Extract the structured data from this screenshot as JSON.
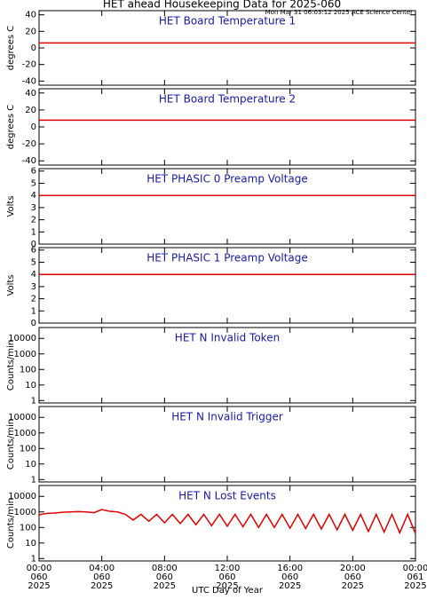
{
  "title": "HET ahead Housekeeping Data for 2025-060",
  "subtitle": "Mon Mar 31 06:03:12 2025 ACE Science Center",
  "xlabel": "UTC Day of Year",
  "chart_data": [
    {
      "type": "line",
      "title": "HET Board Temperature 1",
      "ylabel": "degrees C",
      "xlim": [
        0,
        24
      ],
      "xticks": [
        0,
        4,
        8,
        12,
        16,
        20,
        24
      ],
      "ylim": [
        -45,
        45
      ],
      "yticks": [
        40,
        20,
        0,
        -20,
        -40
      ],
      "series": [
        {
          "color": "#e00000",
          "x": [
            0,
            24
          ],
          "values": [
            6,
            6
          ]
        }
      ]
    },
    {
      "type": "line",
      "title": "HET Board Temperature 2",
      "ylabel": "degrees C",
      "xlim": [
        0,
        24
      ],
      "xticks": [
        0,
        4,
        8,
        12,
        16,
        20,
        24
      ],
      "ylim": [
        -45,
        45
      ],
      "yticks": [
        40,
        20,
        0,
        -20,
        -40
      ],
      "series": [
        {
          "color": "#e00000",
          "x": [
            0,
            24
          ],
          "values": [
            8,
            8
          ]
        }
      ]
    },
    {
      "type": "line",
      "title": "HET PHASIC 0 Preamp Voltage",
      "ylabel": "Volts",
      "xlim": [
        0,
        24
      ],
      "xticks": [
        0,
        4,
        8,
        12,
        16,
        20,
        24
      ],
      "ylim": [
        0,
        6.2
      ],
      "yticks": [
        6,
        5,
        4,
        3,
        2,
        1,
        0
      ],
      "series": [
        {
          "color": "#e00000",
          "x": [
            0,
            24
          ],
          "values": [
            4,
            4
          ]
        }
      ]
    },
    {
      "type": "line",
      "title": "HET PHASIC 1 Preamp Voltage",
      "ylabel": "Volts",
      "xlim": [
        0,
        24
      ],
      "xticks": [
        0,
        4,
        8,
        12,
        16,
        20,
        24
      ],
      "ylim": [
        0,
        6.2
      ],
      "yticks": [
        6,
        5,
        4,
        3,
        2,
        1,
        0
      ],
      "series": [
        {
          "color": "#e00000",
          "x": [
            0,
            24
          ],
          "values": [
            4,
            4
          ]
        }
      ]
    },
    {
      "type": "line",
      "title": "HET N Invalid Token",
      "ylabel": "Counts/min",
      "log": true,
      "xlim": [
        0,
        24
      ],
      "xticks": [
        0,
        4,
        8,
        12,
        16,
        20,
        24
      ],
      "ylim": [
        0.7,
        50000
      ],
      "yticks": [
        10000,
        1000,
        100,
        10,
        1
      ],
      "series": []
    },
    {
      "type": "line",
      "title": "HET N Invalid Trigger",
      "ylabel": "Counts/min",
      "log": true,
      "xlim": [
        0,
        24
      ],
      "xticks": [
        0,
        4,
        8,
        12,
        16,
        20,
        24
      ],
      "ylim": [
        0.7,
        50000
      ],
      "yticks": [
        10000,
        1000,
        100,
        10,
        1
      ],
      "series": []
    },
    {
      "type": "line",
      "title": "HET N Lost Events",
      "ylabel": "Counts/min",
      "log": true,
      "xlim": [
        0,
        24
      ],
      "xticks": [
        {
          "value": 0,
          "label": [
            "00:00",
            "060",
            "2025"
          ]
        },
        {
          "value": 4,
          "label": [
            "04:00",
            "060",
            "2025"
          ]
        },
        {
          "value": 8,
          "label": [
            "08:00",
            "060",
            "2025"
          ]
        },
        {
          "value": 12,
          "label": [
            "12:00",
            "060",
            "2025"
          ]
        },
        {
          "value": 16,
          "label": [
            "16:00",
            "060",
            "2025"
          ]
        },
        {
          "value": 20,
          "label": [
            "20:00",
            "060",
            "2025"
          ]
        },
        {
          "value": 24,
          "label": [
            "00:00",
            "061",
            "2025"
          ]
        }
      ],
      "ylim": [
        0.7,
        50000
      ],
      "yticks": [
        10000,
        1000,
        100,
        10,
        1
      ],
      "series": [
        {
          "color": "#e00000",
          "x": [
            0,
            0.5,
            1,
            1.5,
            2,
            2.5,
            3,
            3.5,
            4,
            4.5,
            5,
            5.5,
            6,
            6.5,
            7,
            7.5,
            8,
            8.5,
            9,
            9.5,
            10,
            10.5,
            11,
            11.5,
            12,
            12.5,
            13,
            13.5,
            14,
            14.5,
            15,
            15.5,
            16,
            16.5,
            17,
            17.5,
            18,
            18.5,
            19,
            19.5,
            20,
            20.5,
            21,
            21.5,
            22,
            22.5,
            23,
            23.5,
            24
          ],
          "values": [
            650,
            800,
            850,
            950,
            1000,
            1050,
            1000,
            900,
            1400,
            1100,
            1000,
            700,
            300,
            700,
            250,
            700,
            200,
            700,
            180,
            700,
            150,
            700,
            130,
            700,
            120,
            700,
            110,
            700,
            100,
            700,
            100,
            700,
            90,
            700,
            85,
            700,
            80,
            700,
            70,
            700,
            65,
            700,
            55,
            700,
            50,
            700,
            45,
            700,
            40
          ]
        }
      ]
    }
  ]
}
